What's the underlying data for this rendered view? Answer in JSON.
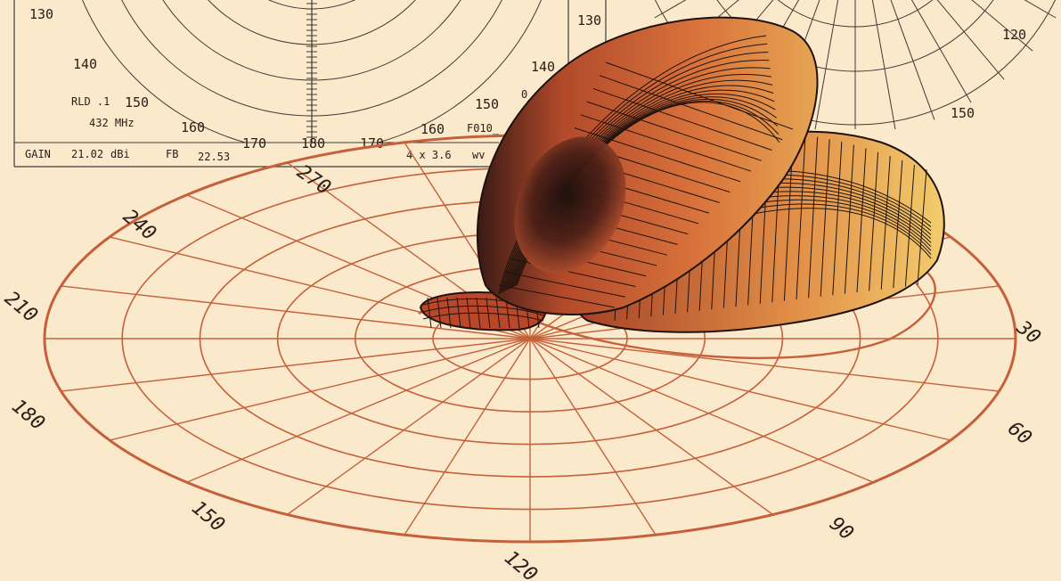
{
  "colors": {
    "background": "#fbe9cb",
    "grid_line": "#3f3a36",
    "polar_red": "#c5603a",
    "lobe_dark": "#2a1410",
    "lobe_mid": "#c85a31",
    "lobe_light": "#f0c466"
  },
  "left_polar": {
    "angle_labels_left": [
      "130",
      "140",
      "150",
      "160",
      "170"
    ],
    "center_label": "180",
    "angle_labels_right": [
      "140",
      "150",
      "160",
      "170"
    ],
    "info": {
      "rld": "RLD .1",
      "freq": "432 MHz",
      "gain_label": "GAIN",
      "gain_value": "21.02",
      "gain_unit": "dBi",
      "fb_label": "FB",
      "fb_value": "22.53",
      "size": "4 x 3.6",
      "unit_cut": "wv",
      "model": "F010_",
      "zero": "0"
    }
  },
  "right_polar": {
    "labels": [
      "130",
      "120",
      "150"
    ]
  },
  "floor_polar": {
    "angle_labels": [
      "270",
      "240",
      "210",
      "180",
      "150",
      "120",
      "90",
      "60",
      "30"
    ]
  }
}
